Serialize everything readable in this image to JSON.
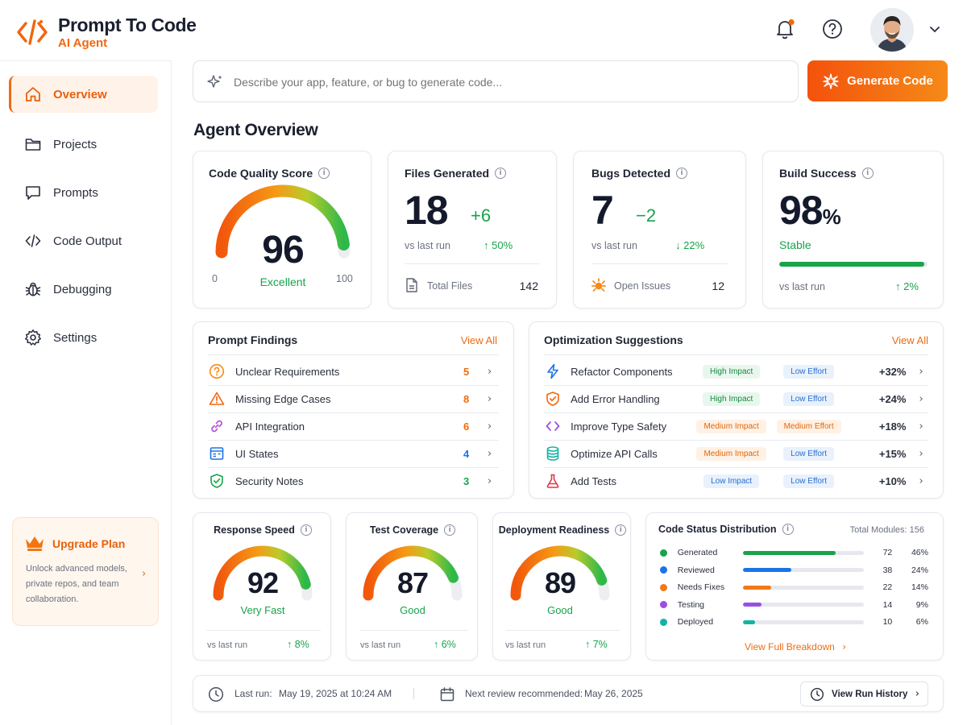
{
  "brand": {
    "title": "Prompt To Code",
    "subtitle": "AI Agent"
  },
  "header": {
    "notification_icon": "bell-icon",
    "help_icon": "help-icon",
    "avatar_icon": "user-avatar"
  },
  "sidebar": {
    "items": [
      {
        "label": "Overview",
        "icon": "home-icon",
        "active": true
      },
      {
        "label": "Projects",
        "icon": "folder-icon"
      },
      {
        "label": "Prompts",
        "icon": "chat-icon"
      },
      {
        "label": "Code Output",
        "icon": "code-icon"
      },
      {
        "label": "Debugging",
        "icon": "bug-icon"
      },
      {
        "label": "Settings",
        "icon": "gear-icon"
      }
    ],
    "upgrade": {
      "title": "Upgrade Plan",
      "text": "Unlock advanced models, private repos, and team collaboration."
    }
  },
  "search": {
    "placeholder": "Describe your app, feature, or bug to generate code...",
    "button": "Generate Code"
  },
  "page_title": "Agent Overview",
  "quality": {
    "title": "Code Quality Score",
    "value": "96",
    "label": "Excellent",
    "min": "0",
    "max": "100",
    "fraction": 0.96
  },
  "files": {
    "title": "Files Generated",
    "value": "18",
    "delta": "+6",
    "vs": "vs last run",
    "pct": "50%",
    "foot_label": "Total Files",
    "foot_value": "142"
  },
  "bugs": {
    "title": "Bugs Detected",
    "value": "7",
    "delta": "−2",
    "vs": "vs last run",
    "pct": "22%",
    "foot_label": "Open Issues",
    "foot_value": "12"
  },
  "build": {
    "title": "Build Success",
    "value": "98",
    "unit": "%",
    "status": "Stable",
    "vs": "vs last run",
    "pct": "2%",
    "fraction": 0.98
  },
  "findings": {
    "title": "Prompt Findings",
    "view_all": "View All",
    "items": [
      {
        "label": "Unclear Requirements",
        "count": "5",
        "icon": "question-circle-icon",
        "color": "#ef6c10"
      },
      {
        "label": "Missing Edge Cases",
        "count": "8",
        "icon": "warning-triangle-icon",
        "color": "#ef6c10"
      },
      {
        "label": "API Integration",
        "count": "6",
        "icon": "link-icon",
        "color": "#ef6c10"
      },
      {
        "label": "UI States",
        "count": "4",
        "icon": "layout-icon",
        "color": "#1a73e8"
      },
      {
        "label": "Security Notes",
        "count": "3",
        "icon": "shield-check-icon",
        "color": "#17a34a"
      }
    ]
  },
  "suggestions": {
    "title": "Optimization Suggestions",
    "view_all": "View All",
    "items": [
      {
        "label": "Refactor Components",
        "impact": "High Impact",
        "effort": "Low Effort",
        "gain": "+32%",
        "icon": "lightning-icon"
      },
      {
        "label": "Add Error Handling",
        "impact": "High Impact",
        "effort": "Low Effort",
        "gain": "+24%",
        "icon": "shield-icon"
      },
      {
        "label": "Improve Type Safety",
        "impact": "Medium Impact",
        "effort": "Medium Effort",
        "gain": "+18%",
        "icon": "code-brackets-icon"
      },
      {
        "label": "Optimize API Calls",
        "impact": "Medium Impact",
        "effort": "Low Effort",
        "gain": "+15%",
        "icon": "database-icon"
      },
      {
        "label": "Add Tests",
        "impact": "Low Impact",
        "effort": "Low Effort",
        "gain": "+10%",
        "icon": "flask-icon"
      }
    ]
  },
  "speed": {
    "title": "Response Speed",
    "value": "92",
    "label": "Very Fast",
    "vs": "vs last run",
    "pct": "8%",
    "fraction": 0.92
  },
  "coverage": {
    "title": "Test Coverage",
    "value": "87",
    "label": "Good",
    "vs": "vs last run",
    "pct": "6%",
    "fraction": 0.87
  },
  "deploy": {
    "title": "Deployment Readiness",
    "value": "89",
    "label": "Good",
    "vs": "vs last run",
    "pct": "7%",
    "fraction": 0.89
  },
  "distribution": {
    "title": "Code Status Distribution",
    "total": "Total Modules: 156",
    "link": "View Full Breakdown",
    "items": [
      {
        "label": "Generated",
        "count": "72",
        "pct": "46%",
        "fraction": 0.46,
        "color": "#1aa34a"
      },
      {
        "label": "Reviewed",
        "count": "38",
        "pct": "24%",
        "fraction": 0.24,
        "color": "#1a73e8"
      },
      {
        "label": "Needs Fixes",
        "count": "22",
        "pct": "14%",
        "fraction": 0.14,
        "color": "#f07a18"
      },
      {
        "label": "Testing",
        "count": "14",
        "pct": "9%",
        "fraction": 0.09,
        "color": "#9b4ee0"
      },
      {
        "label": "Deployed",
        "count": "10",
        "pct": "6%",
        "fraction": 0.06,
        "color": "#13b3a3"
      }
    ]
  },
  "footer": {
    "last_run_label": "Last run:",
    "last_run": "May 19, 2025 at 10:24 AM",
    "next_label": "Next review recommended:",
    "next": "May 26, 2025",
    "history": "View Run History"
  }
}
